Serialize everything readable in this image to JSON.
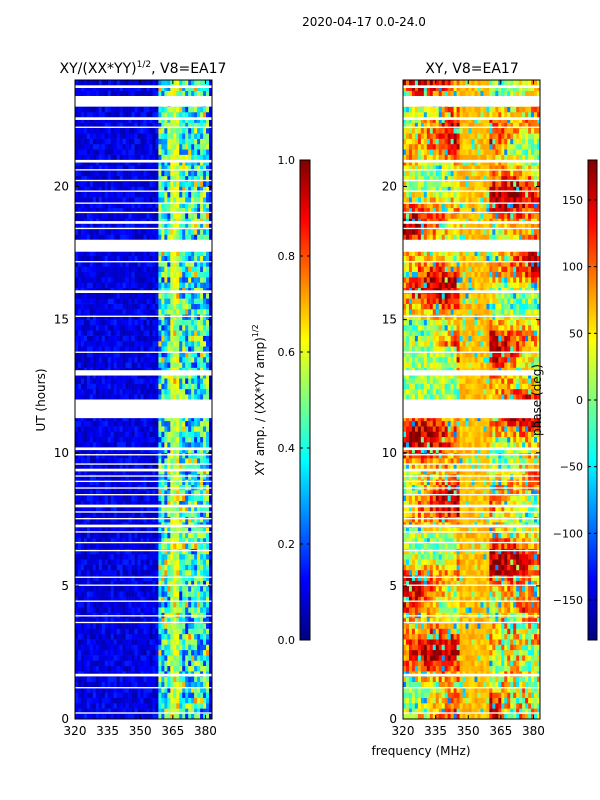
{
  "figure": {
    "suptitle": "2020-04-17 0.0-24.0",
    "xlabel": "frequency (MHz)"
  },
  "chart_data": [
    {
      "type": "heatmap",
      "title_main": "XY/(XX*YY)",
      "title_exp": "1/2",
      "title_suffix": ", V8=EA17",
      "ylabel": "UT (hours)",
      "xlabel": "frequency (MHz)",
      "xlim": [
        320,
        383
      ],
      "ylim": [
        0,
        24
      ],
      "xticks": [
        320,
        335,
        350,
        365,
        380
      ],
      "yticks": [
        0,
        5,
        10,
        15,
        20
      ],
      "colorbar": {
        "label_main": "XY amp. / (XX*YY amp)",
        "label_exp": "1/2",
        "range": [
          0.0,
          1.0
        ],
        "ticks": [
          "0.0",
          "0.2",
          "0.4",
          "0.6",
          "0.8",
          "1.0"
        ],
        "tick_values": [
          0.0,
          0.2,
          0.4,
          0.6,
          0.8,
          1.0
        ],
        "colormap": "jet"
      },
      "description": "Mostly low amplitude (deep blue) across 320-358 MHz; elevated amplitude (cyan/green/yellow streaks) in band ~360-380 MHz; horizontal white gaps (flagged data)."
    },
    {
      "type": "heatmap",
      "title_main": "XY, V8=EA17",
      "ylabel": "",
      "xlabel": "frequency (MHz)",
      "xlim": [
        320,
        383
      ],
      "ylim": [
        0,
        24
      ],
      "xticks": [
        320,
        335,
        350,
        365,
        380
      ],
      "yticks": [
        0,
        5,
        10,
        15,
        20
      ],
      "colorbar": {
        "label_main": "phase (deg)",
        "range": [
          -180,
          180
        ],
        "ticks": [
          "150",
          "100",
          "50",
          "0",
          "−50",
          "−100",
          "−150"
        ],
        "tick_values": [
          150,
          100,
          50,
          0,
          -50,
          -100,
          -150
        ],
        "colormap": "jet"
      },
      "description": "Phase mostly red/orange/yellow with a stable yellow-orange band near 350-360 MHz; scattered blue/cyan patches; horizontal white gaps."
    }
  ],
  "flag_gaps_hours": [
    [
      0.2,
      0.25
    ],
    [
      1.15,
      1.2
    ],
    [
      1.6,
      1.7
    ],
    [
      3.6,
      3.65
    ],
    [
      3.85,
      3.9
    ],
    [
      4.4,
      4.45
    ],
    [
      5.0,
      5.05
    ],
    [
      5.3,
      5.35
    ],
    [
      6.3,
      6.35
    ],
    [
      6.6,
      6.65
    ],
    [
      7.0,
      7.05
    ],
    [
      7.2,
      7.3
    ],
    [
      7.5,
      7.55
    ],
    [
      7.75,
      7.8
    ],
    [
      7.95,
      8.05
    ],
    [
      8.4,
      8.45
    ],
    [
      8.65,
      8.7
    ],
    [
      8.9,
      8.95
    ],
    [
      9.1,
      9.15
    ],
    [
      9.3,
      9.4
    ],
    [
      9.55,
      9.6
    ],
    [
      9.9,
      9.95
    ],
    [
      10.1,
      10.2
    ],
    [
      11.3,
      12.0
    ],
    [
      12.9,
      13.1
    ],
    [
      13.75,
      13.8
    ],
    [
      15.1,
      15.15
    ],
    [
      16.0,
      16.1
    ],
    [
      17.15,
      17.2
    ],
    [
      17.55,
      18.0
    ],
    [
      18.4,
      18.45
    ],
    [
      18.6,
      18.7
    ],
    [
      19.0,
      19.05
    ],
    [
      19.35,
      19.4
    ],
    [
      19.8,
      19.85
    ],
    [
      20.2,
      20.25
    ],
    [
      20.6,
      20.65
    ],
    [
      20.9,
      21.0
    ],
    [
      22.2,
      22.25
    ],
    [
      22.5,
      22.6
    ],
    [
      23.0,
      23.4
    ],
    [
      23.7,
      23.8
    ]
  ]
}
